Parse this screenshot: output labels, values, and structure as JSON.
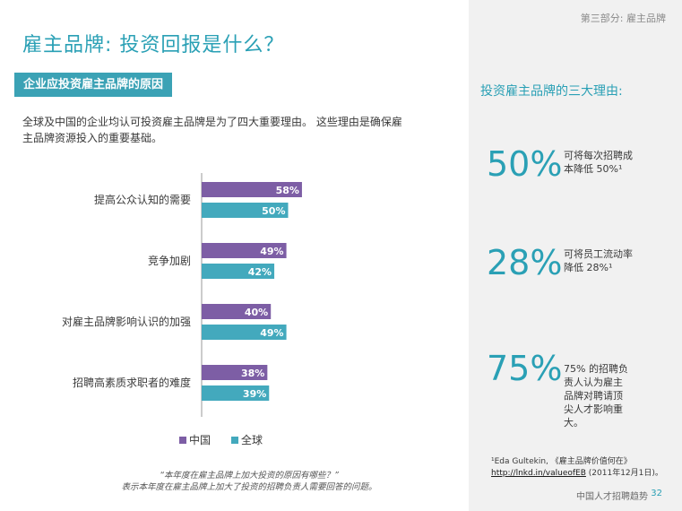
{
  "header": {
    "section": "第三部分: 雇主品牌",
    "title": "雇主品牌: 投资回报是什么？"
  },
  "left": {
    "subheader": "企业应投资雇主品牌的原因",
    "intro": "全球及中国的企业均认可投资雇主品牌是为了四大重要理由。 这些理由是确保雇主品牌资源投入的重要基础。",
    "note_line1": "“本年度在雇主品牌上加大投资的原因有哪些？”",
    "note_line2": "表示本年度在雇主品牌上加大了投资的招聘负责人需要回答的问题。"
  },
  "chart_data": {
    "type": "bar",
    "orientation": "horizontal",
    "categories": [
      "提高公众认知的需要",
      "竞争加剧",
      "对雇主品牌影响认识的加强",
      "招聘高素质求职者的难度"
    ],
    "series": [
      {
        "name": "中国",
        "values": [
          58,
          49,
          40,
          38
        ],
        "color": "#7d5ea5"
      },
      {
        "name": "全球",
        "values": [
          50,
          42,
          49,
          39
        ],
        "color": "#43a9bd"
      }
    ],
    "value_suffix": "%",
    "xlim": [
      0,
      100
    ],
    "legend_position": "bottom"
  },
  "right": {
    "title": "投资雇主品牌的三大理由:",
    "stats": [
      {
        "value": "50%",
        "desc_line1": "可将每次招聘成",
        "desc_line2": "本降低 50%¹"
      },
      {
        "value": "28%",
        "desc_line1": "可将员工流动率",
        "desc_line2": "降低 28%¹"
      },
      {
        "value": "75%",
        "desc": "75% 的招聘负责人认为雇主品牌对聘请顶尖人才影响重大。"
      }
    ],
    "footnote_text": "¹Eda Gultekin, 《雇主品牌价值何在》",
    "footnote_link": "http://lnkd.in/valueofEB",
    "footnote_date": " (2011年12月1日)。"
  },
  "footer": {
    "text": "中国人才招聘趋势",
    "page": "32"
  }
}
